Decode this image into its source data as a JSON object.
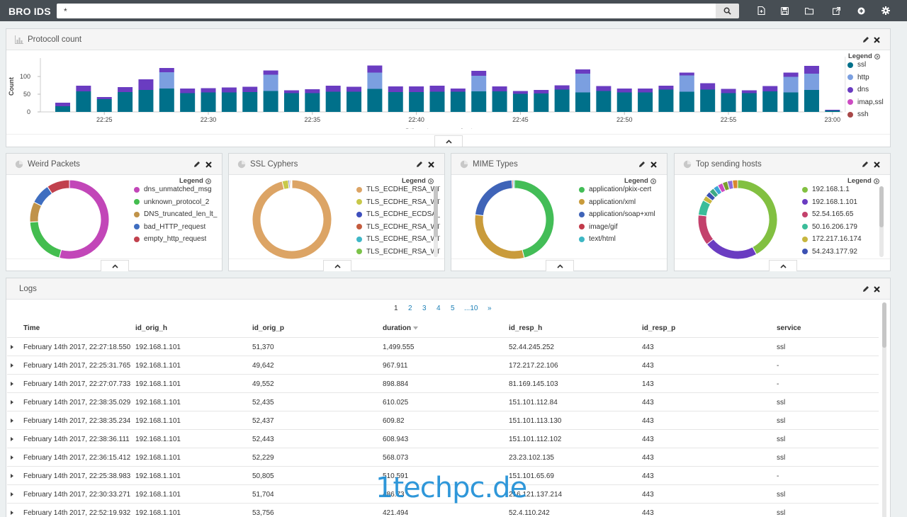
{
  "topbar": {
    "brand": "BRO IDS",
    "query": "*",
    "icons": [
      "search-icon",
      "new-dashboard-icon",
      "save-icon",
      "open-icon",
      "share-icon",
      "add-panel-icon",
      "gear-icon"
    ]
  },
  "protocol_panel": {
    "title": "Protocoll count",
    "legend_title": "Legend",
    "chart_data": {
      "type": "bar",
      "stacked": true,
      "xlabel": "@timestamp per minute",
      "ylabel": "Count",
      "ylim": [
        0,
        135
      ],
      "yticks": [
        0,
        50,
        100
      ],
      "xticks": [
        "22:25",
        "22:30",
        "22:35",
        "22:40",
        "22:45",
        "22:50",
        "22:55",
        "23:00"
      ],
      "x": [
        "22:23",
        "22:24",
        "22:25",
        "22:26",
        "22:27",
        "22:28",
        "22:29",
        "22:30",
        "22:31",
        "22:32",
        "22:33",
        "22:34",
        "22:35",
        "22:36",
        "22:37",
        "22:38",
        "22:39",
        "22:40",
        "22:41",
        "22:42",
        "22:43",
        "22:44",
        "22:45",
        "22:46",
        "22:47",
        "22:48",
        "22:49",
        "22:50",
        "22:51",
        "22:52",
        "22:53",
        "22:54",
        "22:55",
        "22:56",
        "22:57",
        "22:58",
        "22:59",
        "23:00",
        "23:01"
      ],
      "series": [
        {
          "name": "ssl",
          "color": "#00708a",
          "values": [
            16,
            58,
            36,
            56,
            62,
            66,
            53,
            55,
            55,
            56,
            59,
            53,
            53,
            57,
            57,
            65,
            56,
            56,
            57,
            57,
            58,
            58,
            51,
            52,
            63,
            55,
            59,
            55,
            55,
            63,
            57,
            63,
            53,
            53,
            58,
            55,
            62,
            4,
            0
          ]
        },
        {
          "name": "http",
          "color": "#7b9fe0",
          "values": [
            0,
            0,
            0,
            0,
            0,
            46,
            0,
            0,
            0,
            0,
            46,
            0,
            0,
            0,
            0,
            46,
            0,
            0,
            0,
            0,
            44,
            0,
            0,
            0,
            0,
            53,
            0,
            0,
            0,
            0,
            46,
            0,
            0,
            0,
            0,
            44,
            46,
            0,
            0
          ]
        },
        {
          "name": "dns",
          "color": "#6a3cc1",
          "values": [
            10,
            16,
            6,
            14,
            30,
            12,
            13,
            12,
            14,
            15,
            12,
            8,
            11,
            17,
            14,
            20,
            16,
            16,
            17,
            9,
            14,
            14,
            8,
            10,
            12,
            12,
            14,
            11,
            11,
            11,
            8,
            18,
            12,
            8,
            15,
            12,
            22,
            2,
            0
          ]
        },
        {
          "name": "imap,ssl",
          "color": "#cc4bc2",
          "values": [
            0,
            0,
            0,
            0,
            0,
            0,
            0,
            0,
            0,
            0,
            0,
            0,
            0,
            0,
            0,
            0,
            0,
            0,
            0,
            0,
            0,
            0,
            0,
            0,
            0,
            0,
            0,
            0,
            0,
            0,
            0,
            0,
            0,
            0,
            0,
            0,
            0,
            0,
            0
          ]
        },
        {
          "name": "ssh",
          "color": "#a84848",
          "values": [
            0,
            0,
            0,
            0,
            0,
            0,
            0,
            0,
            0,
            0,
            0,
            0,
            0,
            0,
            0,
            0,
            0,
            0,
            0,
            0,
            0,
            0,
            0,
            0,
            0,
            0,
            0,
            0,
            0,
            0,
            0,
            0,
            0,
            0,
            0,
            0,
            0,
            0,
            0
          ]
        }
      ]
    }
  },
  "pies": [
    {
      "title": "Weird Packets",
      "legend_title": "Legend",
      "chart_data": {
        "type": "pie",
        "labels": [
          "dns_unmatched_msg",
          "unknown_protocol_2",
          "DNS_truncated_len_lt_...",
          "bad_HTTP_request",
          "empty_http_request"
        ],
        "values": [
          52,
          19,
          8,
          8,
          9
        ],
        "colors": [
          "#c246b8",
          "#43bd4f",
          "#c0934a",
          "#3f6ec0",
          "#c1414d"
        ]
      }
    },
    {
      "title": "SSL Cyphers",
      "legend_title": "Legend",
      "chart_data": {
        "type": "pie",
        "labels": [
          "TLS_ECDHE_RSA_WIT...",
          "TLS_ECDHE_RSA_WIT...",
          "TLS_ECDHE_ECDSA_...",
          "TLS_ECDHE_RSA_WIT...",
          "TLS_ECDHE_RSA_WIT...",
          "TLS_ECDHE_RSA_WIT..."
        ],
        "values": [
          96,
          2.5,
          0.5,
          0.4,
          0.3,
          0.3
        ],
        "colors": [
          "#dca465",
          "#c8c84a",
          "#3e4fbd",
          "#c45c3e",
          "#3fb7c7",
          "#7cc34a"
        ]
      }
    },
    {
      "title": "MIME Types",
      "legend_title": "Legend",
      "chart_data": {
        "type": "pie",
        "labels": [
          "application/pkix-cert",
          "application/xml",
          "application/soap+xml",
          "image/gif",
          "text/html"
        ],
        "values": [
          46,
          31,
          22,
          0.5,
          0.5
        ],
        "colors": [
          "#43bd57",
          "#c99b3b",
          "#3f64b8",
          "#c23a4a",
          "#3db7c4"
        ]
      }
    },
    {
      "title": "Top sending hosts",
      "legend_title": "Legend",
      "chart_data": {
        "type": "pie",
        "labels": [
          "192.168.1.1",
          "192.168.1.101",
          "52.54.165.65",
          "50.16.206.179",
          "172.217.16.174",
          "54.243.177.92"
        ],
        "values": [
          40,
          21,
          12,
          6,
          2,
          2
        ],
        "colors": [
          "#82c041",
          "#6a3cc1",
          "#c3416c",
          "#3bbd9a",
          "#c7b63f",
          "#3c51b3"
        ],
        "extra_slices": [
          {
            "value": 2,
            "color": "#3faa84"
          },
          {
            "value": 2,
            "color": "#3ca6d6"
          },
          {
            "value": 2,
            "color": "#cc4bc2"
          },
          {
            "value": 2,
            "color": "#7a9f2e"
          },
          {
            "value": 2,
            "color": "#8c6ad9"
          },
          {
            "value": 2,
            "color": "#d9882e"
          }
        ]
      }
    }
  ],
  "logs": {
    "title": "Logs",
    "pagination": [
      "1",
      "2",
      "3",
      "4",
      "5",
      "...10",
      "»"
    ],
    "columns": [
      "Time",
      "id_orig_h",
      "id_orig_p",
      "duration",
      "id_resp_h",
      "id_resp_p",
      "service"
    ],
    "rows": [
      [
        "February 14th 2017, 22:27:18.550",
        "192.168.1.101",
        "51,370",
        "1,499.555",
        "52.44.245.252",
        "443",
        "ssl"
      ],
      [
        "February 14th 2017, 22:25:31.765",
        "192.168.1.101",
        "49,642",
        "967.911",
        "172.217.22.106",
        "443",
        "-"
      ],
      [
        "February 14th 2017, 22:27:07.733",
        "192.168.1.101",
        "49,552",
        "898.884",
        "81.169.145.103",
        "143",
        "-"
      ],
      [
        "February 14th 2017, 22:38:35.029",
        "192.168.1.101",
        "52,435",
        "610.025",
        "151.101.112.84",
        "443",
        "ssl"
      ],
      [
        "February 14th 2017, 22:38:35.234",
        "192.168.1.101",
        "52,437",
        "609.82",
        "151.101.113.130",
        "443",
        "ssl"
      ],
      [
        "February 14th 2017, 22:38:36.111",
        "192.168.1.101",
        "52,443",
        "608.943",
        "151.101.112.102",
        "443",
        "ssl"
      ],
      [
        "February 14th 2017, 22:36:15.412",
        "192.168.1.101",
        "52,229",
        "568.073",
        "23.23.102.135",
        "443",
        "ssl"
      ],
      [
        "February 14th 2017, 22:25:38.983",
        "192.168.1.101",
        "50,805",
        "510.591",
        "151.101.65.69",
        "443",
        "-"
      ],
      [
        "February 14th 2017, 22:30:33.271",
        "192.168.1.101",
        "51,704",
        "486.73",
        "216.121.137.214",
        "443",
        "ssl"
      ],
      [
        "February 14th 2017, 22:52:19.932",
        "192.168.1.101",
        "53,756",
        "421.494",
        "52.4.110.242",
        "443",
        "ssl"
      ]
    ]
  },
  "watermark": "1techpc.de"
}
